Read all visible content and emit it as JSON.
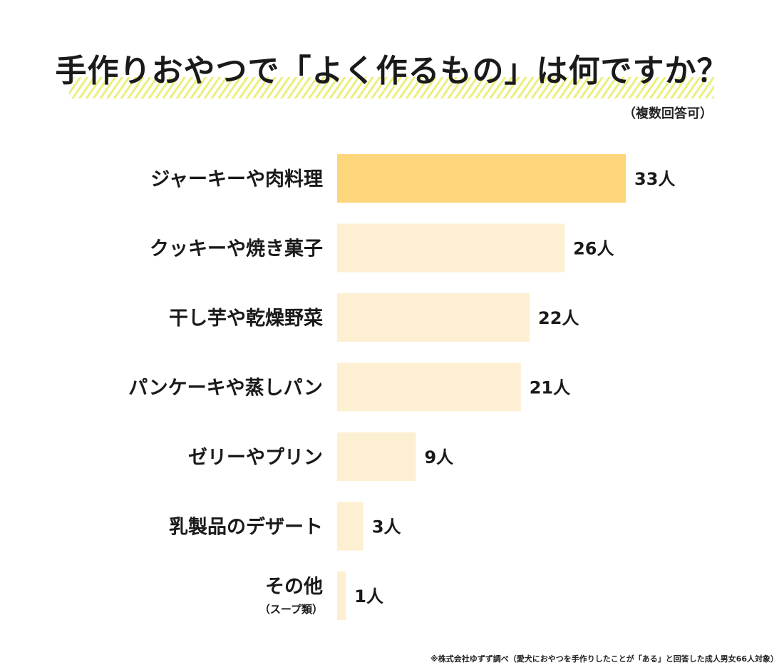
{
  "title": "手作りおやつで「よく作るもの」は何ですか？",
  "subtitle": "（複数回答可）",
  "footnote": "※株式会社ゆずず調べ（愛犬におやつを手作りしたことが「ある」と回答した成人男女66人対象）",
  "colors": {
    "highlight_bar": "#fdd57a",
    "bar": "#fdf0d2",
    "title_stripe": "#eaf07c",
    "text": "#1a1a1a"
  },
  "chart_data": {
    "type": "bar",
    "orientation": "horizontal",
    "title": "手作りおやつで「よく作るもの」は何ですか？",
    "categories": [
      "ジャーキーや肉料理",
      "クッキーや焼き菓子",
      "干し芋や乾燥野菜",
      "パンケーキや蒸しパン",
      "ゼリーやプリン",
      "乳製品のデザート",
      "その他"
    ],
    "category_notes": [
      "",
      "",
      "",
      "",
      "",
      "",
      "（スープ類）"
    ],
    "values": [
      33,
      26,
      22,
      21,
      9,
      3,
      1
    ],
    "unit": "人",
    "value_labels": [
      "33人",
      "26人",
      "22人",
      "21人",
      "9人",
      "3人",
      "1人"
    ],
    "highlight_index": 0,
    "xlim": [
      0,
      33
    ],
    "grid": false,
    "legend": "none"
  }
}
